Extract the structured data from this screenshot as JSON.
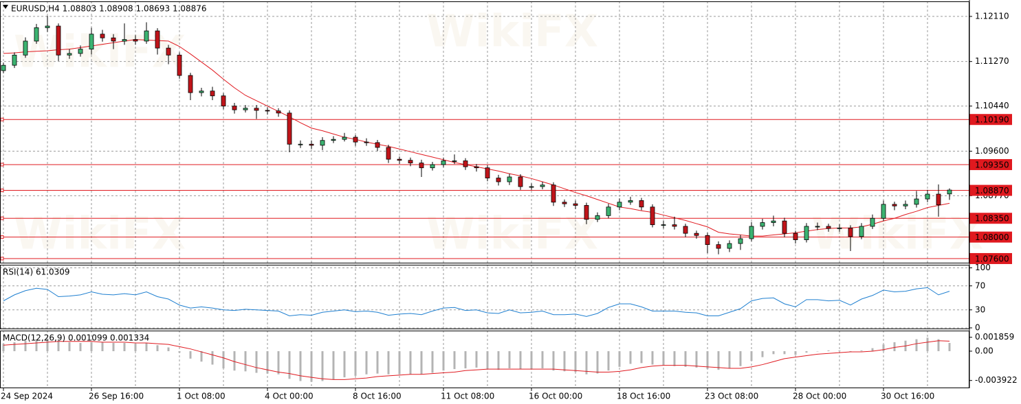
{
  "watermark": "WikiFX",
  "chart_data": [
    {
      "type": "candlestick",
      "title": "EURUSD,H4  1.08803 1.08908 1.08693 1.08876",
      "categories": [
        "24 Sep 2024",
        null,
        null,
        null,
        null,
        null,
        null,
        null,
        "26 Sep 16:00",
        null,
        null,
        null,
        null,
        null,
        null,
        null,
        "1 Oct 08:00",
        null,
        null,
        null,
        null,
        null,
        null,
        null,
        "4 Oct 00:00",
        null,
        null,
        null,
        null,
        null,
        null,
        null,
        "8 Oct 16:00",
        null,
        null,
        null,
        null,
        null,
        null,
        null,
        "11 Oct 08:00",
        null,
        null,
        null,
        null,
        null,
        null,
        null,
        "16 Oct 00:00",
        null,
        null,
        null,
        null,
        null,
        null,
        null,
        "18 Oct 16:00",
        null,
        null,
        null,
        null,
        null,
        null,
        null,
        "23 Oct 08:00",
        null,
        null,
        null,
        null,
        null,
        null,
        null,
        "28 Oct 00:00",
        null,
        null,
        null,
        null,
        null,
        null,
        null,
        "30 Oct 16:00",
        null,
        null,
        null,
        null,
        null,
        null
      ],
      "open": [
        1.111,
        1.112,
        1.1139,
        1.1165,
        1.119,
        1.1193,
        1.1139,
        1.1142,
        1.115,
        1.1178,
        1.1171,
        1.1165,
        1.1168,
        1.1165,
        1.1184,
        1.1152,
        1.1139,
        1.1101,
        1.1069,
        1.1072,
        1.1063,
        1.1044,
        1.1037,
        1.104,
        1.1036,
        1.1035,
        1.1031,
        1.0973,
        1.0973,
        1.0971,
        1.098,
        1.0982,
        1.0986,
        1.0977,
        1.0976,
        1.0967,
        1.0945,
        1.0943,
        1.0938,
        1.0929,
        1.0935,
        1.0942,
        1.0942,
        1.0931,
        1.0929,
        1.091,
        1.0903,
        1.0912,
        1.0894,
        1.0894,
        1.0897,
        1.0865,
        1.0862,
        1.0859,
        1.0833,
        1.084,
        1.0856,
        1.0865,
        1.0868,
        1.0856,
        1.0823,
        1.0823,
        1.082,
        1.0807,
        1.0803,
        1.0786,
        1.0779,
        1.0788,
        1.0797,
        1.082,
        1.0827,
        1.083,
        1.0807,
        1.0795,
        1.082,
        1.082,
        1.0816,
        1.0817,
        1.0801,
        1.082,
        1.0835,
        1.0861,
        1.0858,
        1.0861,
        1.0871,
        1.088,
        1.08803
      ],
      "high": [
        1.1125,
        1.1144,
        1.1172,
        1.1197,
        1.1212,
        1.1198,
        1.115,
        1.1157,
        1.119,
        1.1186,
        1.1178,
        1.1198,
        1.1176,
        1.12,
        1.1189,
        1.1158,
        1.1144,
        1.1106,
        1.1078,
        1.108,
        1.1068,
        1.105,
        1.1046,
        1.1046,
        1.1042,
        1.104,
        1.1036,
        1.098,
        1.098,
        1.0986,
        1.0988,
        1.0994,
        1.099,
        1.0984,
        1.0981,
        1.0972,
        1.095,
        1.0948,
        1.0944,
        1.094,
        1.0948,
        1.0954,
        1.0947,
        1.0936,
        1.0934,
        1.0916,
        1.0918,
        1.0917,
        1.09,
        1.0903,
        1.0902,
        1.087,
        1.0868,
        1.0864,
        1.0846,
        1.0862,
        1.0872,
        1.0875,
        1.0873,
        1.0861,
        1.083,
        1.0838,
        1.0825,
        1.0812,
        1.0808,
        1.0792,
        1.0794,
        1.0804,
        1.0828,
        1.0834,
        1.084,
        1.0836,
        1.0812,
        1.0826,
        1.0827,
        1.0825,
        1.0824,
        1.0822,
        1.0826,
        1.0842,
        1.0868,
        1.0866,
        1.0868,
        1.0886,
        1.0888,
        1.0898,
        1.08908
      ],
      "low": [
        1.1105,
        1.1115,
        1.1134,
        1.116,
        1.1182,
        1.1128,
        1.1132,
        1.1136,
        1.114,
        1.1164,
        1.115,
        1.1158,
        1.1158,
        1.116,
        1.114,
        1.1122,
        1.1095,
        1.1055,
        1.1062,
        1.1055,
        1.1038,
        1.103,
        1.1032,
        1.102,
        1.1028,
        1.1024,
        1.0958,
        1.0966,
        1.0964,
        1.0962,
        1.0975,
        1.0978,
        1.097,
        1.097,
        1.096,
        1.0938,
        1.0936,
        1.0932,
        1.0912,
        1.0924,
        1.093,
        1.0936,
        1.0925,
        1.0922,
        1.0904,
        1.0896,
        1.0897,
        1.0888,
        1.0888,
        1.0889,
        1.0858,
        1.0856,
        1.0852,
        1.0824,
        1.0828,
        1.0835,
        1.085,
        1.086,
        1.085,
        1.0818,
        1.0816,
        1.0814,
        1.08,
        1.0797,
        1.077,
        1.0768,
        1.0772,
        1.0776,
        1.0792,
        1.0814,
        1.082,
        1.08,
        1.0788,
        1.079,
        1.0813,
        1.081,
        1.081,
        1.0774,
        1.0796,
        1.0815,
        1.083,
        1.085,
        1.0852,
        1.0855,
        1.0865,
        1.0838,
        1.08693
      ],
      "close": [
        1.112,
        1.1139,
        1.1165,
        1.119,
        1.1193,
        1.1139,
        1.1142,
        1.115,
        1.1178,
        1.1171,
        1.1165,
        1.1168,
        1.1165,
        1.1184,
        1.1152,
        1.1139,
        1.1101,
        1.1069,
        1.1072,
        1.1063,
        1.1044,
        1.1037,
        1.104,
        1.1036,
        1.1035,
        1.1031,
        1.0973,
        1.0973,
        1.0971,
        1.098,
        1.0982,
        1.0986,
        1.0977,
        1.0976,
        1.0967,
        1.0945,
        1.0943,
        1.0938,
        1.0929,
        1.0935,
        1.0942,
        1.0942,
        1.0931,
        1.0929,
        1.091,
        1.0903,
        1.0912,
        1.0894,
        1.0894,
        1.0897,
        1.0865,
        1.0862,
        1.0859,
        1.0833,
        1.084,
        1.0856,
        1.0865,
        1.0868,
        1.0856,
        1.0823,
        1.0823,
        1.082,
        1.0807,
        1.0803,
        1.0786,
        1.0779,
        1.0788,
        1.0797,
        1.082,
        1.0827,
        1.083,
        1.0807,
        1.0795,
        1.082,
        1.082,
        1.0816,
        1.0817,
        1.0801,
        1.082,
        1.0835,
        1.0861,
        1.0858,
        1.0861,
        1.0871,
        1.088,
        1.086,
        1.08876
      ],
      "ma_values": [
        1.1142,
        1.1143,
        1.1145,
        1.1146,
        1.1147,
        1.1149,
        1.115,
        1.1153,
        1.1156,
        1.1159,
        1.1162,
        1.1165,
        1.1168,
        1.1167,
        1.1166,
        1.1165,
        1.1155,
        1.1141,
        1.1126,
        1.1111,
        1.1094,
        1.1078,
        1.1064,
        1.1054,
        1.1044,
        1.1034,
        1.1024,
        1.1013,
        1.1003,
        1.0998,
        1.0992,
        1.0986,
        1.0982,
        1.0977,
        1.0973,
        1.0969,
        1.0964,
        1.0959,
        1.0954,
        1.0949,
        1.0944,
        1.0939,
        1.0935,
        1.0931,
        1.0927,
        1.0923,
        1.0918,
        1.0914,
        1.0909,
        1.0903,
        1.0897,
        1.089,
        1.0883,
        1.0877,
        1.087,
        1.0863,
        1.0856,
        1.0853,
        1.0849,
        1.0846,
        1.0841,
        1.0836,
        1.0831,
        1.0825,
        1.0819,
        1.0809,
        1.0806,
        1.0804,
        1.0802,
        1.0802,
        1.0804,
        1.0806,
        1.0808,
        1.0811,
        1.0814,
        1.0816,
        1.0817,
        1.0817,
        1.0819,
        1.0824,
        1.083,
        1.0835,
        1.0842,
        1.0848,
        1.0855,
        1.0859,
        1.0863
      ],
      "ma_color": "#e0191f",
      "up_color": "#3cb371",
      "down_color": "#c0141a",
      "wick_color": "#000000",
      "ylim": [
        1.0751,
        1.1239
      ],
      "yticks": [
        {
          "value": 1.1211,
          "label": "1.12110"
        },
        {
          "value": 1.1127,
          "label": "1.11270"
        },
        {
          "value": 1.1044,
          "label": "1.10440"
        },
        {
          "value": 1.096,
          "label": "1.09600"
        },
        {
          "value": 1.0877,
          "label": "1.08770"
        }
      ],
      "levels": [
        {
          "value": 1.1019,
          "label": "1.10190"
        },
        {
          "value": 1.0935,
          "label": "1.09350"
        },
        {
          "value": 1.0887,
          "label": "1.08870"
        },
        {
          "value": 1.0835,
          "label": "1.08350"
        },
        {
          "value": 1.08,
          "label": "1.08000"
        },
        {
          "value": 1.076,
          "label": "1.07600"
        }
      ],
      "level_color": "#e0191f",
      "grid": true
    },
    {
      "type": "line",
      "title": "RSI(14) 61.0309",
      "color": "#1e7fd0",
      "values": [
        45,
        55,
        62,
        66,
        64,
        52,
        53,
        55,
        60,
        56,
        55,
        57,
        55,
        60,
        52,
        48,
        38,
        33,
        35,
        33,
        30,
        29,
        31,
        30,
        29,
        28,
        20,
        22,
        21,
        26,
        28,
        30,
        27,
        28,
        26,
        21,
        23,
        24,
        22,
        28,
        33,
        34,
        29,
        30,
        25,
        24,
        30,
        25,
        26,
        28,
        22,
        22,
        23,
        19,
        24,
        34,
        40,
        40,
        35,
        28,
        28,
        28,
        26,
        25,
        20,
        20,
        26,
        32,
        45,
        49,
        50,
        40,
        35,
        47,
        47,
        45,
        46,
        38,
        48,
        54,
        63,
        60,
        61,
        65,
        67,
        55,
        61.0309
      ],
      "ylim": [
        0,
        100
      ],
      "yticks": [
        0,
        30,
        70,
        100
      ],
      "grid": true
    },
    {
      "type": "macd",
      "title": "MACD(12,26,9) 0.001099 0.001334",
      "color": "#b4b4b4",
      "signal_color": "#e0191f",
      "values": [
        0.001,
        0.0012,
        0.0014,
        0.0016,
        0.0017,
        0.0014,
        0.0012,
        0.0011,
        0.0012,
        0.0012,
        0.0011,
        0.0011,
        0.001,
        0.0011,
        0.0008,
        0.0005,
        -0.0002,
        -0.001,
        -0.0014,
        -0.0018,
        -0.0023,
        -0.0026,
        -0.0027,
        -0.0029,
        -0.003,
        -0.0031,
        -0.0037,
        -0.004,
        -0.0041,
        -0.004,
        -0.0038,
        -0.0035,
        -0.0033,
        -0.0031,
        -0.003,
        -0.0031,
        -0.0031,
        -0.0031,
        -0.0031,
        -0.0029,
        -0.0026,
        -0.0024,
        -0.0023,
        -0.0022,
        -0.0024,
        -0.0025,
        -0.0023,
        -0.0024,
        -0.0024,
        -0.0023,
        -0.0026,
        -0.0027,
        -0.0028,
        -0.0031,
        -0.003,
        -0.0026,
        -0.0021,
        -0.0017,
        -0.0016,
        -0.0018,
        -0.0019,
        -0.002,
        -0.0021,
        -0.0022,
        -0.0024,
        -0.0025,
        -0.0023,
        -0.002,
        -0.0013,
        -0.0008,
        -0.0004,
        -0.0004,
        -0.0005,
        -0.0002,
        0.0,
        0.0001,
        0.0001,
        -0.0001,
        0.0001,
        0.0004,
        0.0009,
        0.0012,
        0.0014,
        0.0016,
        0.0018,
        0.0016,
        0.001099
      ],
      "signal": [
        0.0008,
        0.0009,
        0.001,
        0.0011,
        0.0012,
        0.0013,
        0.0013,
        0.0013,
        0.0013,
        0.0012,
        0.0012,
        0.0012,
        0.0011,
        0.0011,
        0.001,
        0.0009,
        0.0006,
        0.0003,
        -0.0001,
        -0.0005,
        -0.0009,
        -0.0014,
        -0.0018,
        -0.0022,
        -0.0025,
        -0.0028,
        -0.003,
        -0.0033,
        -0.0035,
        -0.0037,
        -0.0038,
        -0.0038,
        -0.0037,
        -0.0036,
        -0.0034,
        -0.0033,
        -0.0032,
        -0.0031,
        -0.0031,
        -0.003,
        -0.0029,
        -0.0028,
        -0.0026,
        -0.0025,
        -0.0024,
        -0.0024,
        -0.0024,
        -0.0024,
        -0.0024,
        -0.0024,
        -0.0024,
        -0.0025,
        -0.0026,
        -0.0027,
        -0.0028,
        -0.0028,
        -0.0027,
        -0.0025,
        -0.0022,
        -0.002,
        -0.0019,
        -0.0019,
        -0.0019,
        -0.002,
        -0.0021,
        -0.0022,
        -0.0023,
        -0.0023,
        -0.0021,
        -0.0018,
        -0.0014,
        -0.001,
        -0.0008,
        -0.0006,
        -0.0004,
        -0.0003,
        -0.0002,
        -0.0001,
        -0.0001,
        0.0,
        0.0002,
        0.0005,
        0.0007,
        0.001,
        0.0012,
        0.0014,
        0.001334
      ],
      "ylim": [
        -0.00496,
        0.00275
      ],
      "yticks": [
        0.001859,
        {
          "value": 0,
          "label": "0.00"
        },
        -0.003922
      ],
      "grid": false
    }
  ]
}
